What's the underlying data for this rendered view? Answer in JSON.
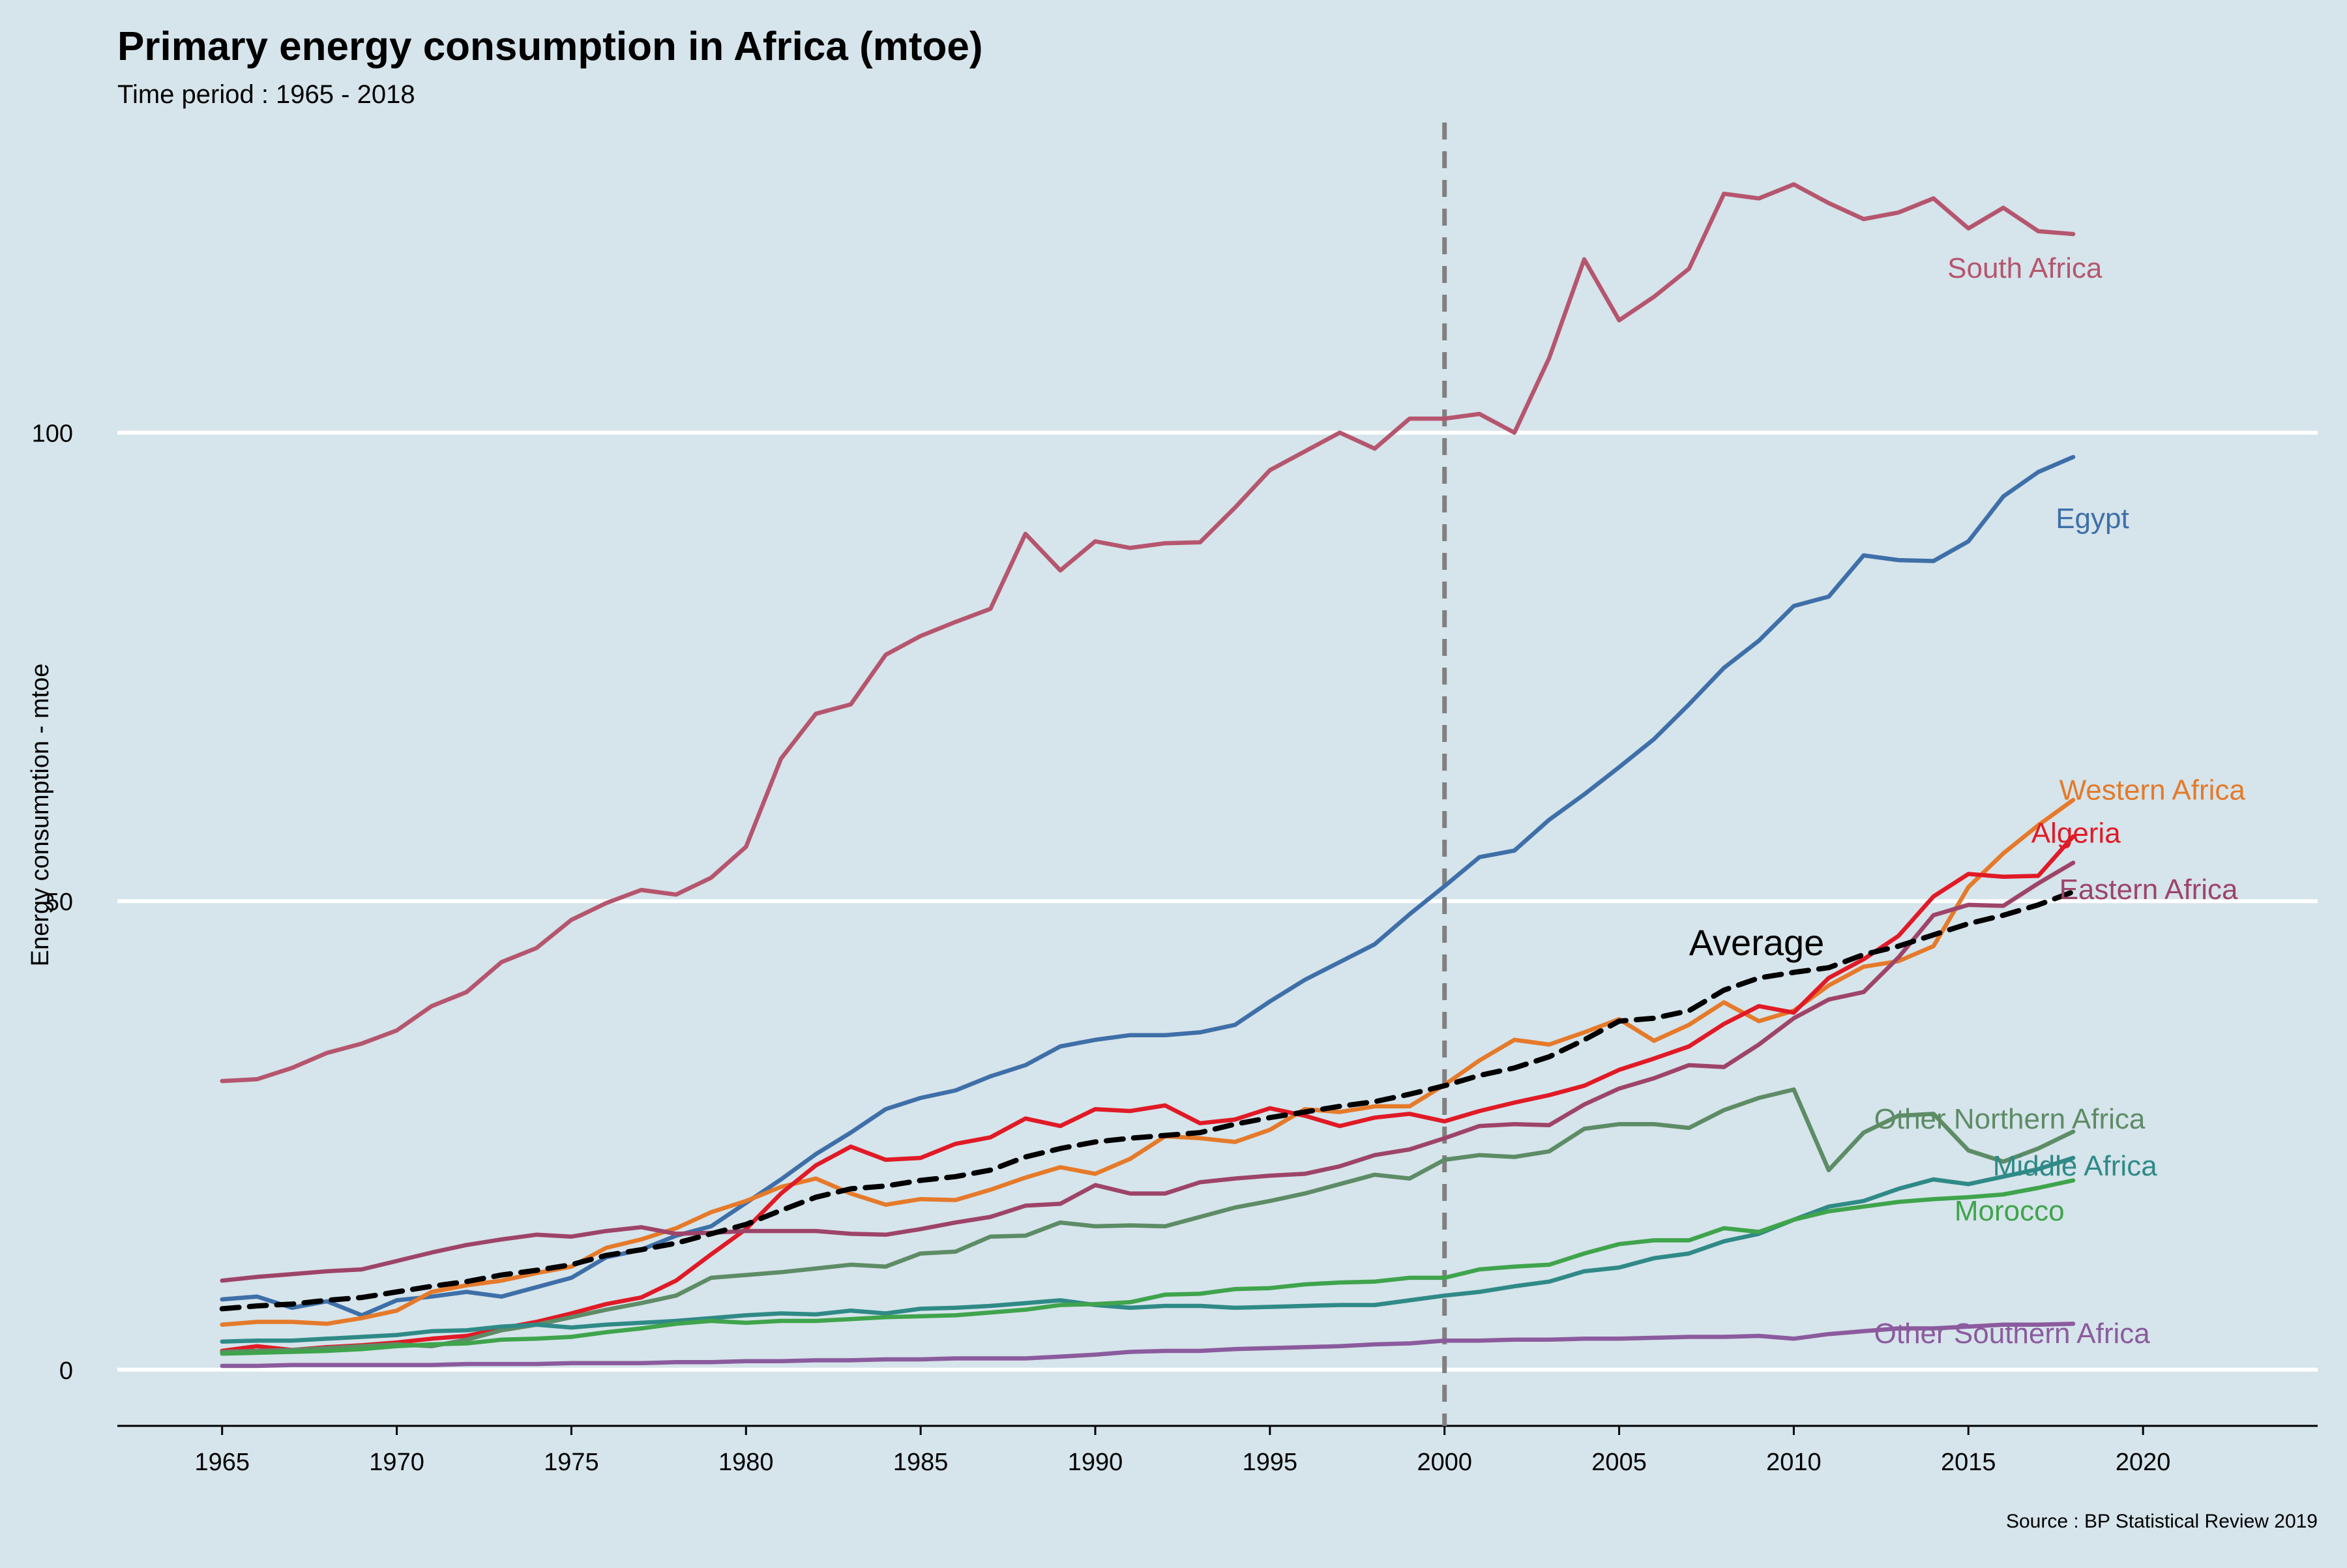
{
  "title": "Primary energy consumption in Africa (mtoe)",
  "subtitle": "Time period : 1965 - 2018",
  "source": "Source : BP Statistical Review 2019",
  "chart_data": {
    "type": "line",
    "title": "Primary energy consumption in Africa (mtoe)",
    "subtitle": "Time period : 1965 - 2018",
    "xlabel": "",
    "ylabel": "Energy consumption - mtoe",
    "xlim": [
      1962,
      2025
    ],
    "ylim": [
      -6,
      134
    ],
    "x_ticks": [
      1965,
      1970,
      1975,
      1980,
      1985,
      1990,
      1995,
      2000,
      2005,
      2010,
      2015,
      2020
    ],
    "y_ticks": [
      0,
      50,
      100
    ],
    "grid": "horizontal major only",
    "legend": "none (series labelled directly at line ends)",
    "annotations": [
      {
        "type": "vertical-dashed-line",
        "x": 2000,
        "color": "#808080"
      },
      {
        "type": "text",
        "text": "Average",
        "x": 2007,
        "y": 45.5
      }
    ],
    "x": [
      1965,
      1966,
      1967,
      1968,
      1969,
      1970,
      1971,
      1972,
      1973,
      1974,
      1975,
      1976,
      1977,
      1978,
      1979,
      1980,
      1981,
      1982,
      1983,
      1984,
      1985,
      1986,
      1987,
      1988,
      1989,
      1990,
      1991,
      1992,
      1993,
      1994,
      1995,
      1996,
      1997,
      1998,
      1999,
      2000,
      2001,
      2002,
      2003,
      2004,
      2005,
      2006,
      2007,
      2008,
      2009,
      2010,
      2011,
      2012,
      2013,
      2014,
      2015,
      2016,
      2017,
      2018
    ],
    "series": [
      {
        "name": "South Africa",
        "color": "#b5566e",
        "label_pos": [
          2014.4,
          117.5
        ],
        "values": [
          30.8,
          31,
          32.2,
          33.8,
          34.8,
          36.2,
          38.8,
          40.3,
          43.5,
          45,
          48,
          49.8,
          51.2,
          50.7,
          52.5,
          55.8,
          65.2,
          70,
          71,
          76.3,
          78.3,
          79.8,
          81.2,
          89.2,
          85.3,
          88.4,
          87.7,
          88.2,
          88.3,
          92,
          96,
          98,
          100,
          98.3,
          101.5,
          101.5,
          102,
          100,
          108,
          118.5,
          112,
          114.5,
          117.5,
          125.5,
          125,
          126.5,
          124.5,
          122.8,
          123.5,
          125,
          121.8,
          124,
          121.5,
          121.2
        ]
      },
      {
        "name": "Egypt",
        "color": "#3e6fa8",
        "label_pos": [
          2017.5,
          90.8
        ],
        "values": [
          7.5,
          7.8,
          6.6,
          7.3,
          5.8,
          7.4,
          7.8,
          8.3,
          7.8,
          8.8,
          9.8,
          12,
          12.8,
          14.3,
          15.3,
          17.8,
          20.3,
          23,
          25.3,
          27.8,
          29,
          29.8,
          31.3,
          32.5,
          34.5,
          35.2,
          35.7,
          35.7,
          36,
          36.8,
          39.3,
          41.6,
          43.5,
          45.4,
          48.6,
          51.6,
          54.7,
          55.4,
          58.7,
          61.4,
          64.3,
          67.3,
          71,
          74.9,
          77.8,
          81.5,
          82.5,
          86.9,
          86.4,
          86.3,
          88.4,
          93.2,
          95.8,
          97.4
        ]
      },
      {
        "name": "Western Africa",
        "color": "#e57a2a",
        "label_pos": [
          2017.6,
          61.8
        ],
        "values": [
          4.8,
          5.1,
          5.1,
          4.9,
          5.5,
          6.3,
          8.3,
          9,
          9.5,
          10.3,
          11,
          13,
          13.9,
          15.1,
          16.8,
          18,
          19.5,
          20.4,
          18.8,
          17.6,
          18.2,
          18.1,
          19.2,
          20.5,
          21.6,
          20.9,
          22.5,
          24.9,
          24.7,
          24.3,
          25.6,
          27.8,
          27.5,
          28.1,
          28.1,
          30.4,
          33,
          35.2,
          34.7,
          36,
          37.4,
          35.1,
          36.8,
          39.2,
          37.2,
          38.3,
          41,
          43,
          43.6,
          45.2,
          51.5,
          55.1,
          58.1,
          60.8
        ]
      },
      {
        "name": "Algeria",
        "color": "#e01a26",
        "label_pos": [
          2016.8,
          57.2
        ],
        "values": [
          2,
          2.5,
          2.1,
          2.4,
          2.6,
          2.9,
          3.3,
          3.6,
          4.4,
          5.1,
          6,
          7,
          7.7,
          9.5,
          12.3,
          15,
          18.8,
          21.8,
          23.8,
          22.4,
          22.6,
          24.1,
          24.8,
          26.8,
          26,
          27.8,
          27.6,
          28.2,
          26.3,
          26.7,
          27.9,
          27.1,
          26,
          26.9,
          27.3,
          26.5,
          27.6,
          28.5,
          29.3,
          30.3,
          32,
          33.2,
          34.5,
          36.9,
          38.8,
          38.1,
          41.8,
          43.8,
          46.3,
          50.5,
          52.9,
          52.6,
          52.7,
          56.9
        ]
      },
      {
        "name": "Eastern Africa",
        "color": "#9e4469",
        "label_pos": [
          2017.6,
          51.2
        ],
        "values": [
          9.5,
          9.9,
          10.2,
          10.5,
          10.7,
          11.6,
          12.5,
          13.3,
          13.9,
          14.4,
          14.2,
          14.8,
          15.2,
          14.5,
          14.6,
          14.8,
          14.8,
          14.8,
          14.5,
          14.4,
          15,
          15.7,
          16.3,
          17.5,
          17.7,
          19.7,
          18.8,
          18.8,
          20,
          20.4,
          20.7,
          20.9,
          21.7,
          22.9,
          23.5,
          24.7,
          26,
          26.2,
          26.1,
          28.3,
          30,
          31.1,
          32.5,
          32.3,
          34.7,
          37.5,
          39.5,
          40.3,
          44,
          48.5,
          49.6,
          49.5,
          51.9,
          54.1
        ]
      },
      {
        "name": "Other Northern Africa",
        "color": "#5d8c66",
        "label_pos": [
          2012.3,
          26.7
        ],
        "values": [
          1.9,
          2,
          2.1,
          2.3,
          2.5,
          2.7,
          2.5,
          3.2,
          4.2,
          4.8,
          5.6,
          6.4,
          7.1,
          7.9,
          9.8,
          10.1,
          10.4,
          10.8,
          11.2,
          11,
          12.4,
          12.6,
          14.2,
          14.3,
          15.7,
          15.3,
          15.4,
          15.3,
          16.3,
          17.3,
          18,
          18.8,
          19.8,
          20.8,
          20.4,
          22.4,
          22.9,
          22.7,
          23.3,
          25.7,
          26.2,
          26.2,
          25.8,
          27.7,
          29,
          29.9,
          21.3,
          25.3,
          27.1,
          27.3,
          23.4,
          22.2,
          23.6,
          25.4
        ]
      },
      {
        "name": "Middle Africa",
        "color": "#2f8a87",
        "label_pos": [
          2015.7,
          21.7
        ],
        "values": [
          3,
          3.1,
          3.1,
          3.3,
          3.5,
          3.7,
          4.1,
          4.2,
          4.6,
          4.8,
          4.5,
          4.8,
          5,
          5.2,
          5.5,
          5.8,
          6,
          5.9,
          6.3,
          6,
          6.5,
          6.6,
          6.8,
          7.1,
          7.4,
          6.9,
          6.6,
          6.8,
          6.8,
          6.6,
          6.7,
          6.8,
          6.9,
          6.9,
          7.4,
          7.9,
          8.3,
          8.9,
          9.4,
          10.5,
          10.9,
          11.9,
          12.4,
          13.7,
          14.5,
          16,
          17.4,
          18,
          19.3,
          20.3,
          19.8,
          20.6,
          21.4,
          22.6
        ]
      },
      {
        "name": "Morocco",
        "color": "#3fa44c",
        "label_pos": [
          2014.6,
          16.9
        ],
        "values": [
          1.7,
          1.8,
          1.9,
          2,
          2.2,
          2.5,
          2.7,
          2.8,
          3.2,
          3.3,
          3.5,
          4,
          4.4,
          4.9,
          5.2,
          5,
          5.2,
          5.2,
          5.4,
          5.6,
          5.7,
          5.8,
          6.1,
          6.4,
          6.9,
          7,
          7.2,
          8,
          8.1,
          8.6,
          8.7,
          9.1,
          9.3,
          9.4,
          9.8,
          9.8,
          10.7,
          11,
          11.2,
          12.4,
          13.4,
          13.8,
          13.8,
          15.1,
          14.7,
          16,
          16.9,
          17.4,
          17.9,
          18.2,
          18.4,
          18.7,
          19.4,
          20.2
        ]
      },
      {
        "name": "Other Southern Africa",
        "color": "#8b5b9e",
        "label_pos": [
          2012.3,
          3.8
        ],
        "values": [
          0.4,
          0.4,
          0.5,
          0.5,
          0.5,
          0.5,
          0.5,
          0.6,
          0.6,
          0.6,
          0.7,
          0.7,
          0.7,
          0.8,
          0.8,
          0.9,
          0.9,
          1,
          1,
          1.1,
          1.1,
          1.2,
          1.2,
          1.2,
          1.4,
          1.6,
          1.9,
          2,
          2,
          2.2,
          2.3,
          2.4,
          2.5,
          2.7,
          2.8,
          3.1,
          3.1,
          3.2,
          3.2,
          3.3,
          3.3,
          3.4,
          3.5,
          3.5,
          3.6,
          3.3,
          3.8,
          4.1,
          4.4,
          4.4,
          4.6,
          4.8,
          4.8,
          4.9
        ]
      },
      {
        "name": "Average",
        "color": "#000000",
        "dashed": true,
        "label_pos": [
          2007,
          45.5
        ],
        "label_size": "large",
        "values": [
          6.5,
          6.8,
          7,
          7.4,
          7.7,
          8.3,
          8.9,
          9.4,
          10.1,
          10.6,
          11.2,
          12.2,
          12.8,
          13.5,
          14.5,
          15.5,
          17,
          18.4,
          19.3,
          19.6,
          20.2,
          20.6,
          21.3,
          22.7,
          23.6,
          24.3,
          24.7,
          25,
          25.3,
          26.2,
          26.9,
          27.5,
          28.1,
          28.6,
          29.4,
          30.3,
          31.4,
          32.2,
          33.4,
          35.2,
          37.2,
          37.5,
          38.3,
          40.5,
          41.8,
          42.4,
          42.9,
          44.3,
          45.2,
          46.4,
          47.6,
          48.5,
          49.6,
          51
        ]
      }
    ]
  }
}
